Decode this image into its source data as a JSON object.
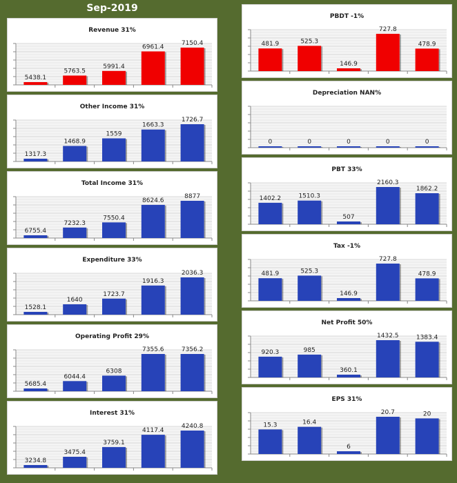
{
  "page": {
    "title": "Sep-2019"
  },
  "colors": {
    "background": "#556b2f",
    "blue": "#2743b8",
    "red": "#f00000"
  },
  "chart_data": [
    {
      "id": "revenue",
      "type": "bar",
      "title": "Revenue 31%",
      "color": "red",
      "values": [
        5438.1,
        5763.5,
        5991.4,
        6961.4,
        7150.4
      ],
      "labels": [
        "5438.1",
        "5763.5",
        "5991.4",
        "6961.4",
        "7150.4"
      ]
    },
    {
      "id": "other-income",
      "type": "bar",
      "title": "Other Income 31%",
      "color": "blue",
      "values": [
        1317.3,
        1468.9,
        1559,
        1663.3,
        1726.7
      ],
      "labels": [
        "1317.3",
        "1468.9",
        "1559",
        "1663.3",
        "1726.7"
      ]
    },
    {
      "id": "total-income",
      "type": "bar",
      "title": "Total Income 31%",
      "color": "blue",
      "values": [
        6755.4,
        7232.3,
        7550.4,
        8624.6,
        8877
      ],
      "labels": [
        "6755.4",
        "7232.3",
        "7550.4",
        "8624.6",
        "8877"
      ]
    },
    {
      "id": "expenditure",
      "type": "bar",
      "title": "Expenditure 33%",
      "color": "blue",
      "values": [
        1528.1,
        1640,
        1723.7,
        1916.3,
        2036.3
      ],
      "labels": [
        "1528.1",
        "1640",
        "1723.7",
        "1916.3",
        "2036.3"
      ]
    },
    {
      "id": "operating-profit",
      "type": "bar",
      "title": "Operating Profit 29%",
      "color": "blue",
      "values": [
        5685.4,
        6044.4,
        6308,
        7355.6,
        7356.2
      ],
      "labels": [
        "5685.4",
        "6044.4",
        "6308",
        "7355.6",
        "7356.2"
      ]
    },
    {
      "id": "interest",
      "type": "bar",
      "title": "Interest 31%",
      "color": "blue",
      "values": [
        3234.8,
        3475.4,
        3759.1,
        4117.4,
        4240.8
      ],
      "labels": [
        "3234.8",
        "3475.4",
        "3759.1",
        "4117.4",
        "4240.8"
      ]
    },
    {
      "id": "pbdt",
      "type": "bar",
      "title": "PBDT -1%",
      "color": "red",
      "values": [
        481.9,
        525.3,
        146.9,
        727.8,
        478.9
      ],
      "labels": [
        "481.9",
        "525.3",
        "146.9",
        "727.8",
        "478.9"
      ]
    },
    {
      "id": "depreciation",
      "type": "bar",
      "title": "Depreciation NAN%",
      "color": "blue",
      "values": [
        0,
        0,
        0,
        0,
        0
      ],
      "labels": [
        "0",
        "0",
        "0",
        "0",
        "0"
      ]
    },
    {
      "id": "pbt",
      "type": "bar",
      "title": "PBT 33%",
      "color": "blue",
      "values": [
        1402.2,
        1510.3,
        507,
        2160.3,
        1862.2
      ],
      "labels": [
        "1402.2",
        "1510.3",
        "507",
        "2160.3",
        "1862.2"
      ]
    },
    {
      "id": "tax",
      "type": "bar",
      "title": "Tax -1%",
      "color": "blue",
      "values": [
        481.9,
        525.3,
        146.9,
        727.8,
        478.9
      ],
      "labels": [
        "481.9",
        "525.3",
        "146.9",
        "727.8",
        "478.9"
      ]
    },
    {
      "id": "net-profit",
      "type": "bar",
      "title": "Net Profit 50%",
      "color": "blue",
      "values": [
        920.3,
        985,
        360.1,
        1432.5,
        1383.4
      ],
      "labels": [
        "920.3",
        "985",
        "360.1",
        "1432.5",
        "1383.4"
      ]
    },
    {
      "id": "eps",
      "type": "bar",
      "title": "EPS 31%",
      "color": "blue",
      "values": [
        15.3,
        16.4,
        6,
        20.7,
        20
      ],
      "labels": [
        "15.3",
        "16.4",
        "6",
        "20.7",
        "20"
      ]
    }
  ]
}
